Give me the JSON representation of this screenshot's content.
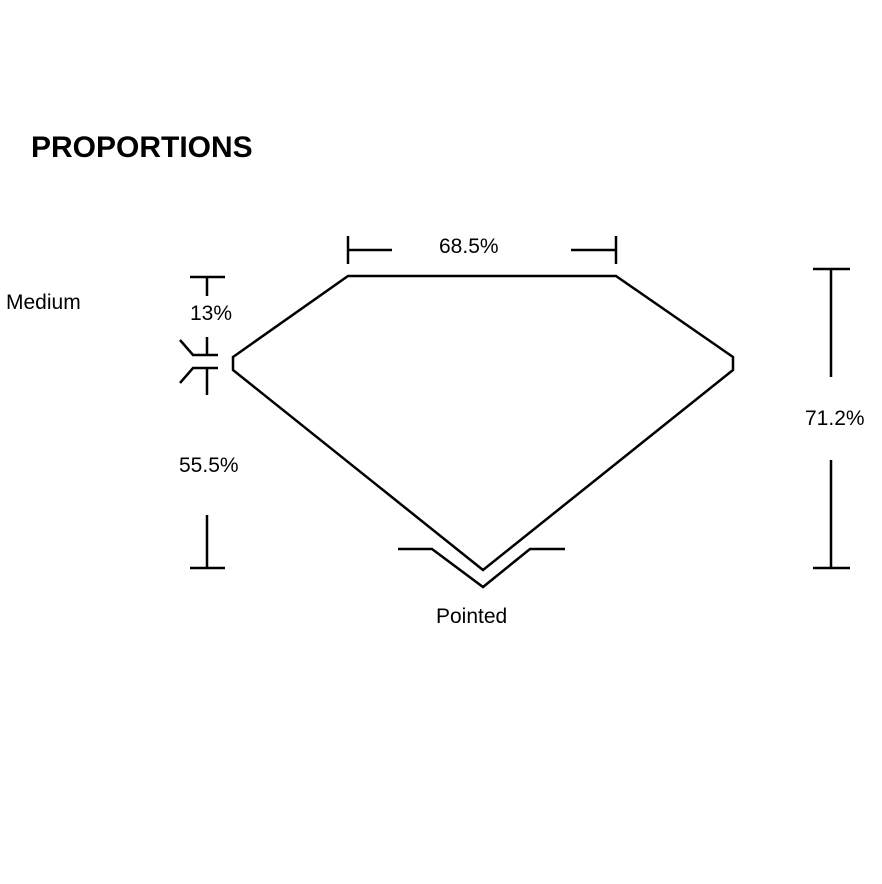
{
  "title": "PROPORTIONS",
  "labels": {
    "table": "68.5%",
    "crown": "13%",
    "girdle": "Medium",
    "pavilion": "55.5%",
    "total_depth": "71.2%",
    "culet": "Pointed"
  },
  "colors": {
    "stroke": "#000000",
    "background": "#ffffff"
  }
}
